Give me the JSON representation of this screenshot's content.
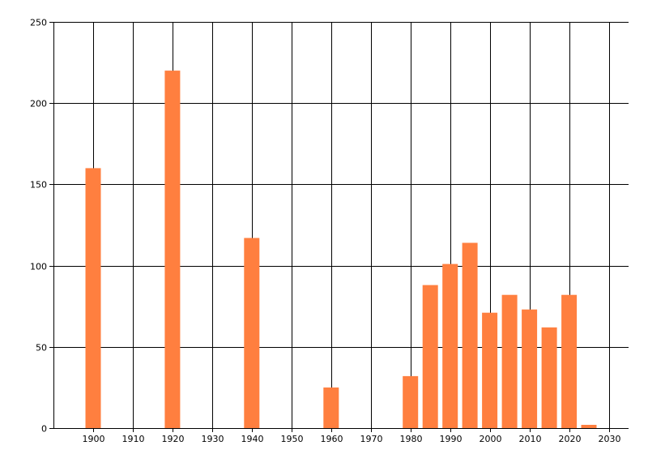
{
  "chart_data": {
    "type": "bar",
    "x": [
      1900,
      1920,
      1940,
      1960,
      1980,
      1985,
      1990,
      1995,
      2000,
      2005,
      2010,
      2015,
      2020,
      2025
    ],
    "values": [
      160,
      220,
      117,
      25,
      32,
      88,
      101,
      114,
      71,
      82,
      73,
      62,
      82,
      2
    ],
    "xlim": [
      1890,
      2035
    ],
    "ylim": [
      0,
      250
    ],
    "x_ticks": [
      "1900",
      "1910",
      "1920",
      "1930",
      "1940",
      "1950",
      "1960",
      "1970",
      "1980",
      "1990",
      "2000",
      "2010",
      "2020",
      "2030"
    ],
    "y_ticks": [
      "0",
      "50",
      "100",
      "150",
      "200",
      "250"
    ],
    "grid": true,
    "bar_color": "#FF7F3F",
    "grid_color": "#000000"
  }
}
